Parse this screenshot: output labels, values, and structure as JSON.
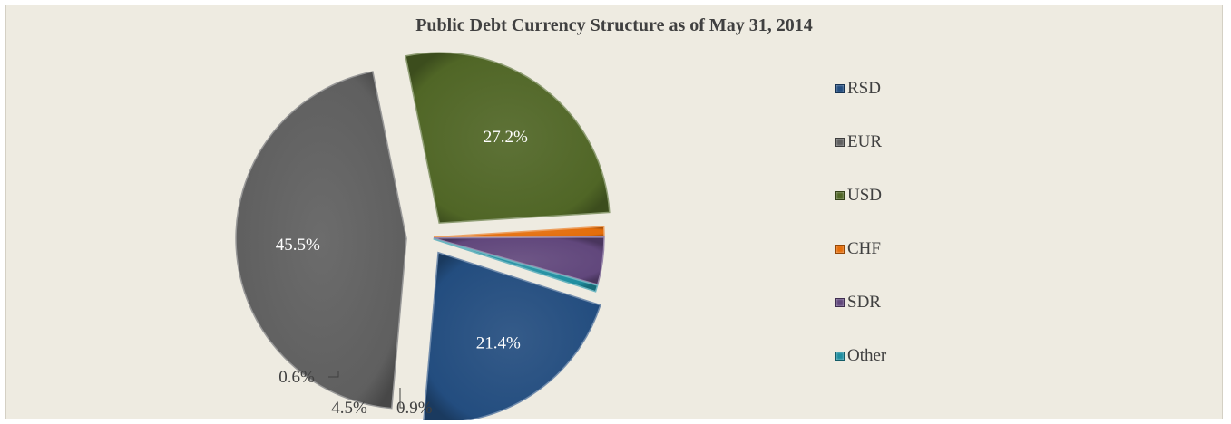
{
  "chart_data": {
    "type": "pie",
    "title": "Public Debt Currency Structure as of May 31, 2014",
    "legend_position": "right",
    "exploded": true,
    "slices": [
      {
        "name": "RSD",
        "value": 21.4,
        "label": "21.4%",
        "color": "#234d7f"
      },
      {
        "name": "EUR",
        "value": 45.5,
        "label": "45.5%",
        "color": "#5f5f5f"
      },
      {
        "name": "USD",
        "value": 27.2,
        "label": "27.2%",
        "color": "#506626"
      },
      {
        "name": "CHF",
        "value": 0.9,
        "label": "0.9%",
        "color": "#e46d0a"
      },
      {
        "name": "SDR",
        "value": 4.5,
        "label": "4.5%",
        "color": "#61477c"
      },
      {
        "name": "Other",
        "value": 0.6,
        "label": "0.6%",
        "color": "#1f8ea0"
      }
    ]
  }
}
